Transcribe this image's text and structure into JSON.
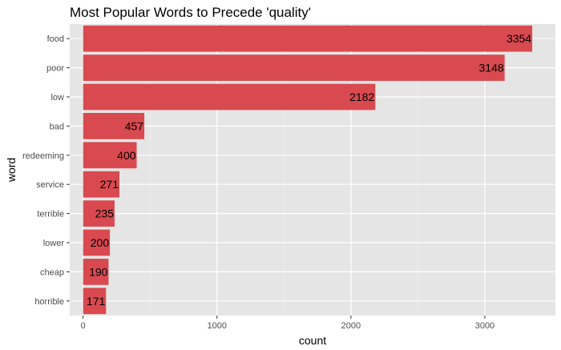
{
  "chart_data": {
    "type": "bar",
    "orientation": "horizontal",
    "title": "Most Popular Words to Precede 'quality'",
    "xlabel": "count",
    "ylabel": "word",
    "categories": [
      "food",
      "poor",
      "low",
      "bad",
      "redeeming",
      "service",
      "terrible",
      "lower",
      "cheap",
      "horrible"
    ],
    "values": [
      3354,
      3148,
      2182,
      457,
      400,
      271,
      235,
      200,
      190,
      171
    ],
    "data_labels": [
      "3354",
      "3148",
      "2182",
      "457",
      "400",
      "271",
      "235",
      "200",
      "190",
      "171"
    ],
    "xlim": [
      -100,
      3527
    ],
    "xticks": [
      0,
      1000,
      2000,
      3000
    ],
    "xtick_labels": [
      "0",
      "1000",
      "2000",
      "3000"
    ],
    "grid": true,
    "legend": "none",
    "colors": {
      "bar": "#d94a50",
      "panel_background": "#e5e5e5",
      "grid_major": "#ffffff",
      "grid_minor": "#f2f2f2"
    }
  }
}
